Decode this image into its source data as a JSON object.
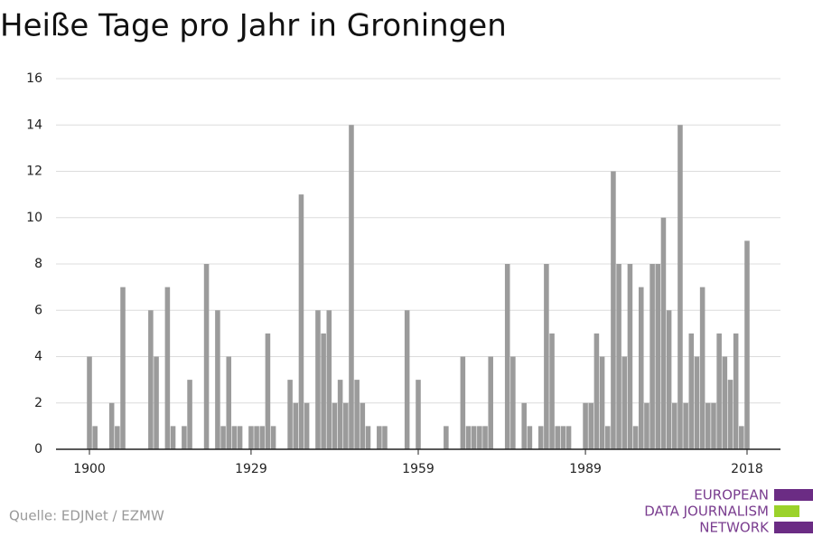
{
  "chart_data": {
    "type": "bar",
    "title": "Heiße Tage pro Jahr in Groningen",
    "source": "Quelle: EDJNet / EZMW",
    "logo": [
      "EUROPEAN",
      "DATA JOURNALISM",
      "NETWORK"
    ],
    "color": "#9b9b9b",
    "grid": true,
    "xlim": [
      1894,
      2024
    ],
    "xticks": [
      1900,
      1929,
      1959,
      1989,
      2018
    ],
    "ylim": [
      0,
      16
    ],
    "yticks": [
      0,
      2,
      4,
      6,
      8,
      10,
      12,
      14,
      16
    ],
    "x": [
      1900,
      1901,
      1902,
      1903,
      1904,
      1905,
      1906,
      1907,
      1908,
      1909,
      1910,
      1911,
      1912,
      1913,
      1914,
      1915,
      1916,
      1917,
      1918,
      1919,
      1920,
      1921,
      1922,
      1923,
      1924,
      1925,
      1926,
      1927,
      1928,
      1929,
      1930,
      1931,
      1932,
      1933,
      1934,
      1935,
      1936,
      1937,
      1938,
      1939,
      1940,
      1941,
      1942,
      1943,
      1944,
      1945,
      1946,
      1947,
      1948,
      1949,
      1950,
      1951,
      1952,
      1953,
      1954,
      1955,
      1956,
      1957,
      1958,
      1959,
      1960,
      1961,
      1962,
      1963,
      1964,
      1965,
      1966,
      1967,
      1968,
      1969,
      1970,
      1971,
      1972,
      1973,
      1974,
      1975,
      1976,
      1977,
      1978,
      1979,
      1980,
      1981,
      1982,
      1983,
      1984,
      1985,
      1986,
      1987,
      1988,
      1989,
      1990,
      1991,
      1992,
      1993,
      1994,
      1995,
      1996,
      1997,
      1998,
      1999,
      2000,
      2001,
      2002,
      2003,
      2004,
      2005,
      2006,
      2007,
      2008,
      2009,
      2010,
      2011,
      2012,
      2013,
      2014,
      2015,
      2016,
      2017,
      2018
    ],
    "values": [
      4,
      1,
      0,
      0,
      2,
      1,
      7,
      0,
      0,
      0,
      0,
      6,
      4,
      0,
      7,
      1,
      0,
      1,
      3,
      0,
      0,
      8,
      0,
      6,
      1,
      4,
      1,
      1,
      0,
      1,
      1,
      1,
      5,
      1,
      0,
      0,
      3,
      2,
      11,
      2,
      0,
      6,
      5,
      6,
      2,
      3,
      2,
      14,
      3,
      2,
      1,
      0,
      1,
      1,
      0,
      0,
      0,
      6,
      0,
      3,
      0,
      0,
      0,
      0,
      1,
      0,
      0,
      4,
      1,
      1,
      1,
      1,
      4,
      0,
      0,
      8,
      4,
      0,
      2,
      1,
      0,
      1,
      8,
      5,
      1,
      1,
      1,
      0,
      0,
      2,
      2,
      5,
      4,
      1,
      12,
      8,
      4,
      8,
      1,
      7,
      2,
      8,
      8,
      10,
      6,
      2,
      14,
      2,
      5,
      4,
      7,
      2,
      2,
      5,
      4,
      3,
      5,
      1,
      9
    ]
  }
}
